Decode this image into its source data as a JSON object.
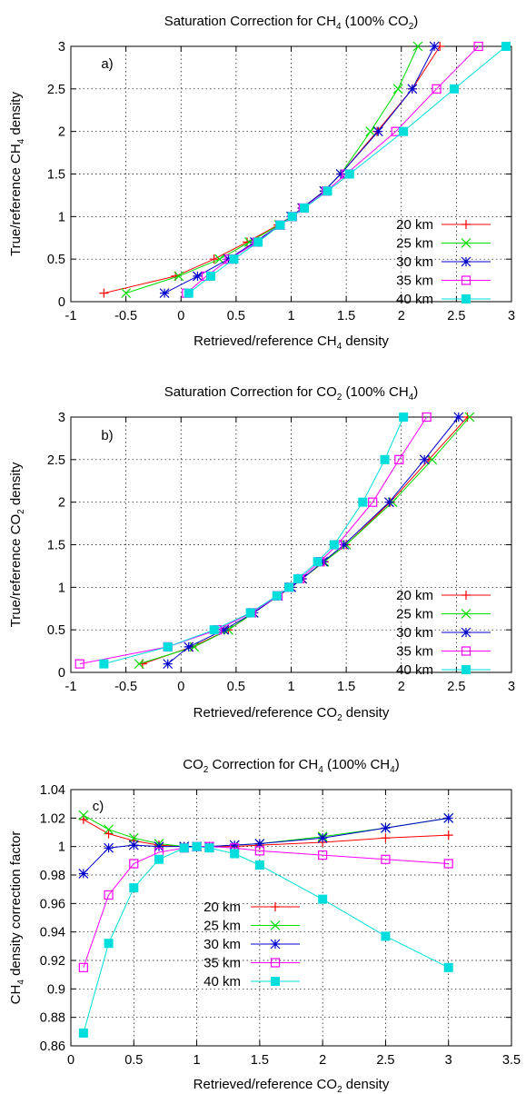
{
  "chart_data": [
    {
      "type": "line",
      "panel_label": "a)",
      "title_parts": [
        "Saturation Correction for CH",
        "4",
        " (100% CO",
        "2",
        ")"
      ],
      "xlabel_parts": [
        "Retrieved/reference CH",
        "4",
        " density"
      ],
      "ylabel_parts": [
        "True/reference CH",
        "4",
        " density"
      ],
      "xlim": [
        -1,
        3
      ],
      "ylim": [
        0,
        3
      ],
      "xticks": [
        -1,
        -0.5,
        0,
        0.5,
        1,
        1.5,
        2,
        2.5,
        3
      ],
      "xtick_labels": [
        "-1",
        "-0.5",
        "0",
        "0.5",
        "1",
        "1.5",
        "2",
        "2.5",
        "3"
      ],
      "yticks": [
        0,
        0.5,
        1,
        1.5,
        2,
        2.5,
        3
      ],
      "ytick_labels": [
        "0",
        "0.5",
        "1",
        "1.5",
        "2",
        "2.5",
        "3"
      ],
      "grid": true,
      "legend": "lower-right",
      "y": [
        0.1,
        0.3,
        0.5,
        0.7,
        0.9,
        1.0,
        1.1,
        1.3,
        1.5,
        2.0,
        2.5,
        3.0
      ],
      "series": [
        {
          "name": "20 km",
          "color": "#ff0000",
          "marker": "plus",
          "x": [
            -0.7,
            -0.05,
            0.3,
            0.6,
            0.88,
            1.0,
            1.1,
            1.3,
            1.45,
            1.78,
            2.1,
            2.35
          ]
        },
        {
          "name": "25 km",
          "color": "#00dd00",
          "marker": "x",
          "x": [
            -0.5,
            -0.02,
            0.35,
            0.62,
            0.89,
            1.0,
            1.1,
            1.3,
            1.45,
            1.72,
            1.97,
            2.15
          ]
        },
        {
          "name": "30 km",
          "color": "#0000cc",
          "marker": "star",
          "x": [
            -0.15,
            0.15,
            0.43,
            0.67,
            0.9,
            1.0,
            1.1,
            1.3,
            1.45,
            1.79,
            2.1,
            2.3
          ]
        },
        {
          "name": "35 km",
          "color": "#ff00ff",
          "marker": "square-open",
          "x": [
            0.05,
            0.23,
            0.44,
            0.69,
            0.9,
            1.01,
            1.11,
            1.32,
            1.5,
            1.95,
            2.32,
            2.7
          ]
        },
        {
          "name": "40 km",
          "color": "#00dddd",
          "marker": "square-filled",
          "x": [
            0.07,
            0.27,
            0.48,
            0.7,
            0.9,
            1.01,
            1.12,
            1.33,
            1.53,
            2.02,
            2.48,
            2.95
          ]
        }
      ]
    },
    {
      "type": "line",
      "panel_label": "b)",
      "title_parts": [
        "Saturation Correction for CO",
        "2",
        " (100% CH",
        "4",
        ")"
      ],
      "xlabel_parts": [
        "Retrieved/reference CO",
        "2",
        " density"
      ],
      "ylabel_parts": [
        "True/reference CO",
        "2",
        " density"
      ],
      "xlim": [
        -1,
        3
      ],
      "ylim": [
        0,
        3
      ],
      "xticks": [
        -1,
        -0.5,
        0,
        0.5,
        1,
        1.5,
        2,
        2.5,
        3
      ],
      "xtick_labels": [
        "-1",
        "-0.5",
        "0",
        "0.5",
        "1",
        "1.5",
        "2",
        "2.5",
        "3"
      ],
      "yticks": [
        0,
        0.5,
        1,
        1.5,
        2,
        2.5,
        3
      ],
      "ytick_labels": [
        "0",
        "0.5",
        "1",
        "1.5",
        "2",
        "2.5",
        "3"
      ],
      "grid": true,
      "legend": "lower-right",
      "y": [
        0.1,
        0.3,
        0.5,
        0.7,
        0.9,
        1.0,
        1.1,
        1.3,
        1.5,
        2.0,
        2.5,
        3.0
      ],
      "series": [
        {
          "name": "20 km",
          "color": "#ff0000",
          "marker": "plus",
          "x": [
            -0.35,
            0.1,
            0.43,
            0.66,
            0.88,
            1.0,
            1.1,
            1.3,
            1.5,
            1.9,
            2.25,
            2.6
          ]
        },
        {
          "name": "25 km",
          "color": "#00dd00",
          "marker": "x",
          "x": [
            -0.38,
            0.12,
            0.43,
            0.66,
            0.88,
            1.0,
            1.1,
            1.3,
            1.5,
            1.92,
            2.28,
            2.62
          ]
        },
        {
          "name": "30 km",
          "color": "#0000cc",
          "marker": "star",
          "x": [
            -0.12,
            0.07,
            0.39,
            0.66,
            0.88,
            1.0,
            1.1,
            1.29,
            1.48,
            1.89,
            2.21,
            2.52
          ]
        },
        {
          "name": "35 km",
          "color": "#ff00ff",
          "marker": "square-open",
          "x": [
            -0.92,
            -0.12,
            0.33,
            0.64,
            0.88,
            0.98,
            1.08,
            1.26,
            1.42,
            1.74,
            1.98,
            2.23
          ]
        },
        {
          "name": "40 km",
          "color": "#00dddd",
          "marker": "square-filled",
          "x": [
            -0.7,
            -0.12,
            0.3,
            0.63,
            0.87,
            0.98,
            1.06,
            1.24,
            1.39,
            1.65,
            1.85,
            2.02
          ]
        }
      ]
    },
    {
      "type": "line",
      "panel_label": "c)",
      "title_parts": [
        "CO",
        "2",
        " Correction for CH",
        "4",
        " (100% CH",
        "4",
        ")"
      ],
      "xlabel_parts": [
        "Retrieved/reference CO",
        "2",
        " density"
      ],
      "ylabel_parts": [
        "CH",
        "4",
        " density correction factor"
      ],
      "xlim": [
        0,
        3.5
      ],
      "ylim": [
        0.86,
        1.04
      ],
      "xticks": [
        0,
        0.5,
        1,
        1.5,
        2,
        2.5,
        3,
        3.5
      ],
      "xtick_labels": [
        "0",
        "0.5",
        "1",
        "1.5",
        "2",
        "2.5",
        "3",
        "3.5"
      ],
      "yticks": [
        0.86,
        0.88,
        0.9,
        0.92,
        0.94,
        0.96,
        0.98,
        1,
        1.02,
        1.04
      ],
      "ytick_labels": [
        "0.86",
        "0.88",
        "0.9",
        "0.92",
        "0.94",
        "0.96",
        "0.98",
        "1",
        "1.02",
        "1.04"
      ],
      "grid": true,
      "legend": "center-left",
      "x": [
        0.1,
        0.3,
        0.5,
        0.7,
        0.9,
        1.0,
        1.1,
        1.3,
        1.5,
        2.0,
        2.5,
        3.0
      ],
      "series": [
        {
          "name": "20 km",
          "color": "#ff0000",
          "marker": "plus",
          "y": [
            1.019,
            1.009,
            1.004,
            1.001,
            1.0,
            1.0,
            1.0,
            1.0,
            1.001,
            1.003,
            1.006,
            1.008
          ]
        },
        {
          "name": "25 km",
          "color": "#00dd00",
          "marker": "x",
          "y": [
            1.022,
            1.012,
            1.006,
            1.002,
            1.0,
            1.0,
            1.0,
            1.001,
            1.002,
            1.007,
            1.013,
            1.02
          ]
        },
        {
          "name": "30 km",
          "color": "#0000cc",
          "marker": "star",
          "y": [
            0.981,
            0.999,
            1.001,
            1.0,
            1.0,
            1.0,
            1.0,
            1.001,
            1.002,
            1.006,
            1.013,
            1.02
          ]
        },
        {
          "name": "35 km",
          "color": "#ff00ff",
          "marker": "square-open",
          "y": [
            0.915,
            0.966,
            0.988,
            0.996,
            0.999,
            1.0,
            1.0,
            0.999,
            0.997,
            0.994,
            0.991,
            0.988
          ]
        },
        {
          "name": "40 km",
          "color": "#00dddd",
          "marker": "square-filled",
          "y": [
            0.869,
            0.932,
            0.971,
            0.991,
            0.999,
            1.0,
            0.999,
            0.995,
            0.987,
            0.963,
            0.937,
            0.915
          ]
        }
      ]
    }
  ]
}
